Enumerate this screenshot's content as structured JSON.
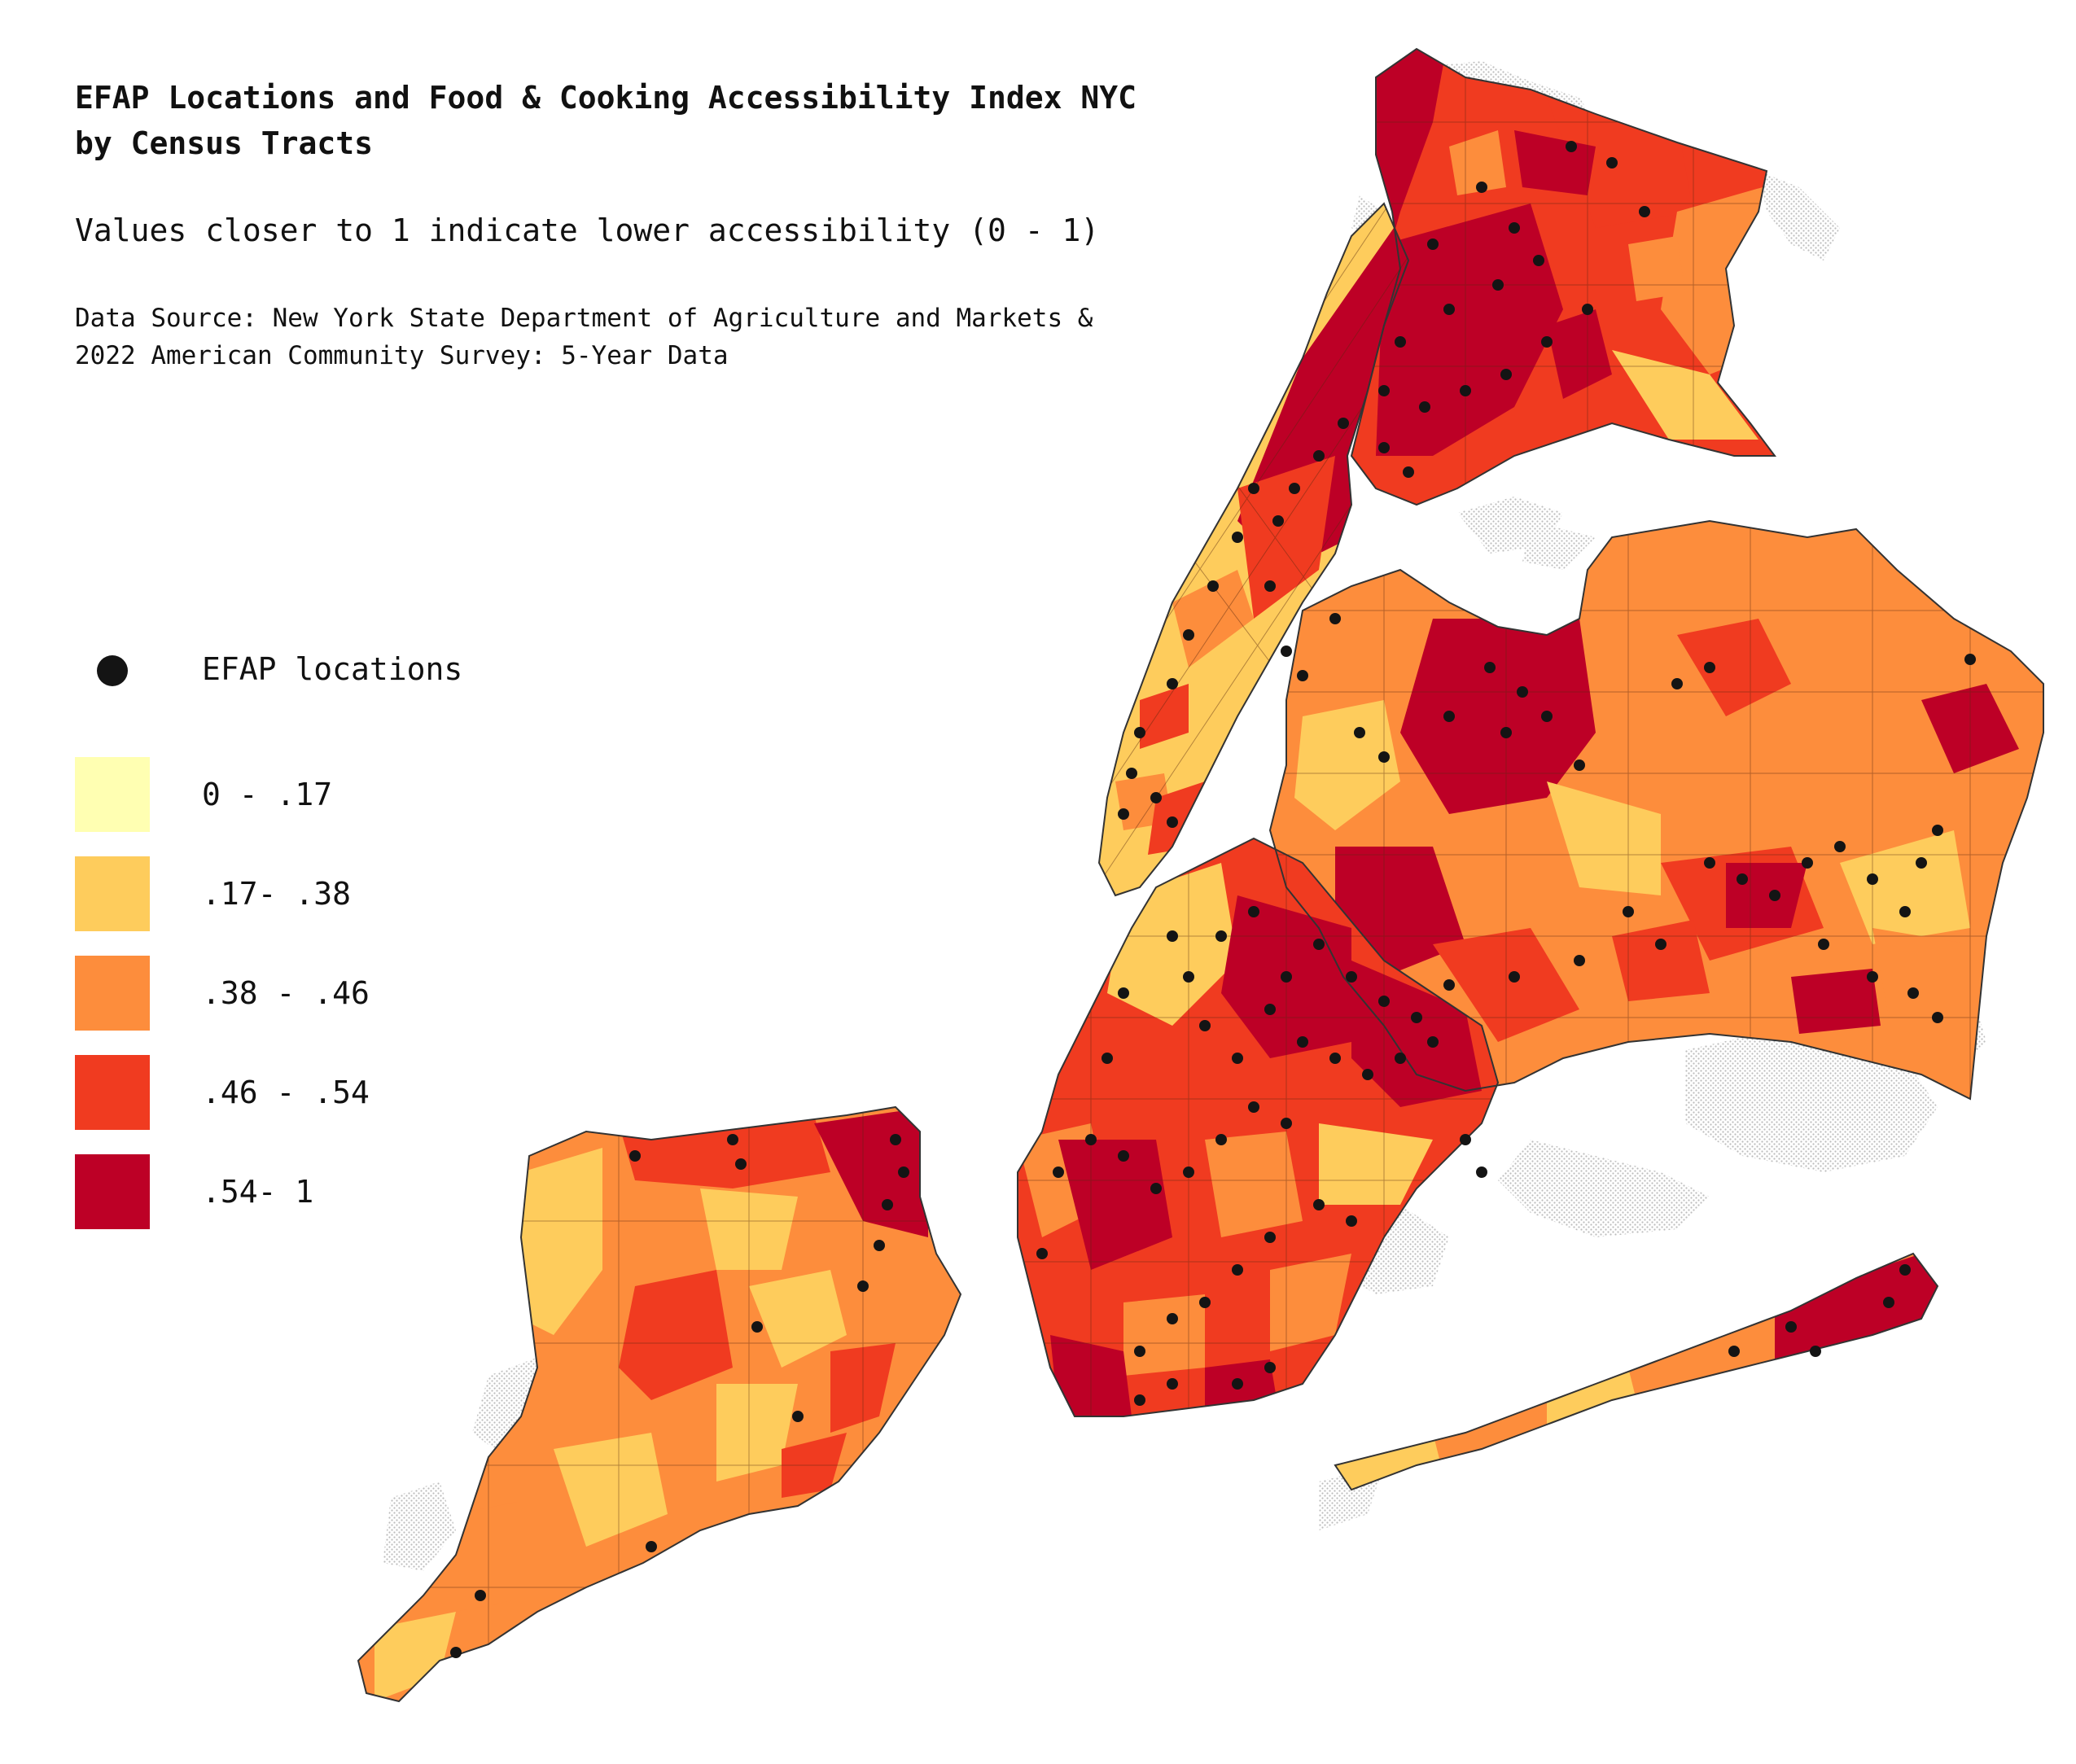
{
  "title": {
    "line1": "EFAP Locations and Food & Cooking Accessibility Index NYC",
    "line2": "by Census Tracts"
  },
  "subtitle": "Values closer to 1 indicate lower accessibility (0 - 1)",
  "source": {
    "line1": "Data Source: New York State Department of Agriculture and Markets &",
    "line2": "2022 American Community Survey: 5-Year Data"
  },
  "legend": {
    "points_label": "EFAP locations",
    "point_color": "#141414",
    "classes": [
      {
        "label": "0 - .17",
        "color": "#ffffb2"
      },
      {
        "label": ".17- .38",
        "color": "#fecc5c"
      },
      {
        "label": ".38 - .46",
        "color": "#fd8d3c"
      },
      {
        "label": ".46 - .54",
        "color": "#f03b20"
      },
      {
        "label": ".54- 1",
        "color": "#bd0026"
      }
    ]
  },
  "map": {
    "boundary_color": "#333333",
    "nodata_pattern_color": "#cfcfcf",
    "water_color": "#ffffff"
  }
}
